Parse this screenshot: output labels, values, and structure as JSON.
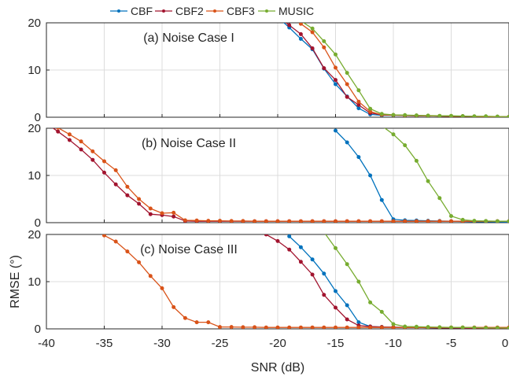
{
  "chart_data": {
    "type": "line",
    "xlabel": "SNR (dB)",
    "ylabel": "RMSE (°)",
    "xlim": [
      -40,
      0
    ],
    "ylim": [
      0,
      20
    ],
    "xticks": [
      "-40",
      "-35",
      "-30",
      "-25",
      "-20",
      "-15",
      "-10",
      "-5",
      "0"
    ],
    "yticks": [
      "0",
      "10",
      "20"
    ],
    "grid": true,
    "legend_position": "top",
    "x": [
      -40,
      -39,
      -38,
      -37,
      -36,
      -35,
      -34,
      -33,
      -32,
      -31,
      -30,
      -29,
      -28,
      -27,
      -26,
      -25,
      -24,
      -23,
      -22,
      -21,
      -20,
      -19,
      -18,
      -17,
      -16,
      -15,
      -14,
      -13,
      -12,
      -11,
      -10,
      -9,
      -8,
      -7,
      -6,
      -5,
      -4,
      -3,
      -2,
      -1,
      0
    ],
    "legend": [
      {
        "name": "CBF",
        "color": "#0072BD"
      },
      {
        "name": "CBF2",
        "color": "#A2142F"
      },
      {
        "name": "CBF3",
        "color": "#D95319"
      },
      {
        "name": "MUSIC",
        "color": "#77AC30"
      }
    ],
    "panels": [
      {
        "title": "(a) Noise Case I",
        "series": [
          {
            "name": "CBF",
            "values": [
              null,
              null,
              null,
              null,
              null,
              null,
              null,
              null,
              null,
              null,
              null,
              null,
              null,
              null,
              null,
              null,
              null,
              null,
              null,
              null,
              21.2,
              19.0,
              16.6,
              14.4,
              10.3,
              7.0,
              4.4,
              1.9,
              0.6,
              0.4,
              0.4,
              0.35,
              0.3,
              0.3,
              0.25,
              0.2,
              0.2,
              0.15,
              0.1,
              0.1,
              0.1
            ]
          },
          {
            "name": "CBF2",
            "values": [
              null,
              null,
              null,
              null,
              null,
              null,
              null,
              null,
              null,
              null,
              null,
              null,
              null,
              null,
              null,
              null,
              null,
              null,
              null,
              null,
              21.3,
              19.5,
              17.6,
              14.6,
              10.4,
              7.9,
              4.3,
              2.6,
              0.9,
              0.5,
              0.45,
              0.35,
              0.3,
              0.3,
              0.25,
              0.2,
              0.2,
              0.15,
              0.1,
              0.1,
              0.1
            ]
          },
          {
            "name": "CBF3",
            "values": [
              null,
              null,
              null,
              null,
              null,
              null,
              null,
              null,
              null,
              null,
              null,
              null,
              null,
              null,
              null,
              null,
              null,
              null,
              null,
              null,
              null,
              null,
              19.8,
              18.0,
              14.8,
              10.5,
              7.0,
              3.3,
              1.2,
              0.5,
              0.45,
              0.4,
              0.35,
              0.3,
              0.25,
              0.2,
              0.2,
              0.15,
              0.1,
              0.1,
              0.1
            ]
          },
          {
            "name": "MUSIC",
            "values": [
              null,
              null,
              null,
              null,
              null,
              null,
              null,
              null,
              null,
              null,
              null,
              null,
              null,
              null,
              null,
              null,
              null,
              null,
              null,
              null,
              null,
              null,
              20.4,
              18.8,
              16.1,
              13.3,
              9.4,
              5.7,
              1.8,
              0.7,
              0.5,
              0.45,
              0.4,
              0.35,
              0.3,
              0.3,
              0.25,
              0.2,
              0.2,
              0.15,
              0.1
            ]
          }
        ]
      },
      {
        "title": "(b) Noise Case II",
        "series": [
          {
            "name": "CBF",
            "values": [
              null,
              null,
              null,
              null,
              null,
              null,
              null,
              null,
              null,
              null,
              null,
              null,
              null,
              null,
              null,
              null,
              null,
              null,
              null,
              null,
              null,
              null,
              null,
              null,
              null,
              19.5,
              17.0,
              13.9,
              10.0,
              4.8,
              0.7,
              0.5,
              0.45,
              0.4,
              0.35,
              0.3,
              0.25,
              0.2,
              0.2,
              0.15,
              0.1
            ]
          },
          {
            "name": "CBF2",
            "values": [
              21.0,
              19.3,
              17.5,
              15.5,
              13.3,
              10.6,
              8.1,
              5.8,
              4.0,
              1.8,
              1.6,
              1.3,
              0.35,
              0.3,
              0.3,
              0.3,
              0.3,
              0.3,
              0.3,
              0.3,
              0.3,
              0.3,
              0.3,
              0.3,
              0.3,
              0.3,
              0.3,
              0.3,
              0.3,
              0.3,
              0.3,
              0.3,
              0.3,
              0.3,
              0.3,
              0.3,
              0.3,
              0.3,
              0.3,
              0.3,
              0.3
            ]
          },
          {
            "name": "CBF3",
            "values": [
              20.5,
              20.1,
              18.7,
              17.2,
              15.1,
              13.0,
              11.1,
              7.6,
              5.0,
              3.0,
              2.0,
              2.1,
              0.5,
              0.45,
              0.4,
              0.4,
              0.35,
              0.35,
              0.3,
              0.3,
              0.3,
              0.3,
              0.3,
              0.3,
              0.3,
              0.3,
              0.3,
              0.3,
              0.3,
              0.3,
              0.3,
              0.3,
              0.3,
              0.3,
              0.3,
              0.3,
              0.3,
              0.3,
              0.3,
              0.3,
              0.3
            ]
          },
          {
            "name": "MUSIC",
            "values": [
              null,
              null,
              null,
              null,
              null,
              null,
              null,
              null,
              null,
              null,
              null,
              null,
              null,
              null,
              null,
              null,
              null,
              null,
              null,
              null,
              null,
              null,
              null,
              null,
              null,
              null,
              null,
              null,
              null,
              20.5,
              18.7,
              16.4,
              13.1,
              8.8,
              5.2,
              1.4,
              0.6,
              0.4,
              0.35,
              0.3,
              0.3
            ]
          }
        ]
      },
      {
        "title": "(c) Noise Case III",
        "series": [
          {
            "name": "CBF",
            "values": [
              null,
              null,
              null,
              null,
              null,
              null,
              null,
              null,
              null,
              null,
              null,
              null,
              null,
              null,
              null,
              null,
              null,
              null,
              null,
              null,
              null,
              19.6,
              17.3,
              14.7,
              11.7,
              8.0,
              5.0,
              1.4,
              0.5,
              0.4,
              0.35,
              0.3,
              0.3,
              0.25,
              0.2,
              0.2,
              0.15,
              0.1,
              0.1,
              0.1,
              0.1
            ]
          },
          {
            "name": "CBF2",
            "values": [
              null,
              null,
              null,
              null,
              null,
              null,
              null,
              null,
              null,
              null,
              null,
              null,
              null,
              null,
              null,
              null,
              null,
              null,
              20.5,
              20.0,
              18.6,
              16.8,
              14.2,
              11.5,
              7.2,
              4.5,
              2.0,
              0.7,
              0.5,
              0.4,
              0.35,
              0.3,
              0.3,
              0.25,
              0.2,
              0.2,
              0.15,
              0.1,
              0.1,
              0.1,
              0.1
            ]
          },
          {
            "name": "CBF3",
            "values": [
              null,
              null,
              null,
              null,
              null,
              19.8,
              18.5,
              16.4,
              14.1,
              11.2,
              8.6,
              4.6,
              2.3,
              1.4,
              1.4,
              0.4,
              0.4,
              0.35,
              0.35,
              0.3,
              0.3,
              0.3,
              0.3,
              0.3,
              0.3,
              0.3,
              0.3,
              0.3,
              0.3,
              0.3,
              0.3,
              0.3,
              0.3,
              0.3,
              0.3,
              0.3,
              0.3,
              0.3,
              0.3,
              0.3,
              0.3
            ]
          },
          {
            "name": "MUSIC",
            "values": [
              null,
              null,
              null,
              null,
              null,
              null,
              null,
              null,
              null,
              null,
              null,
              null,
              null,
              null,
              null,
              null,
              null,
              null,
              null,
              null,
              null,
              null,
              null,
              null,
              20.5,
              17.1,
              13.7,
              10.0,
              5.6,
              3.6,
              1.0,
              0.5,
              0.45,
              0.4,
              0.35,
              0.3,
              0.3,
              0.25,
              0.2,
              0.2,
              0.15
            ]
          }
        ]
      }
    ]
  }
}
